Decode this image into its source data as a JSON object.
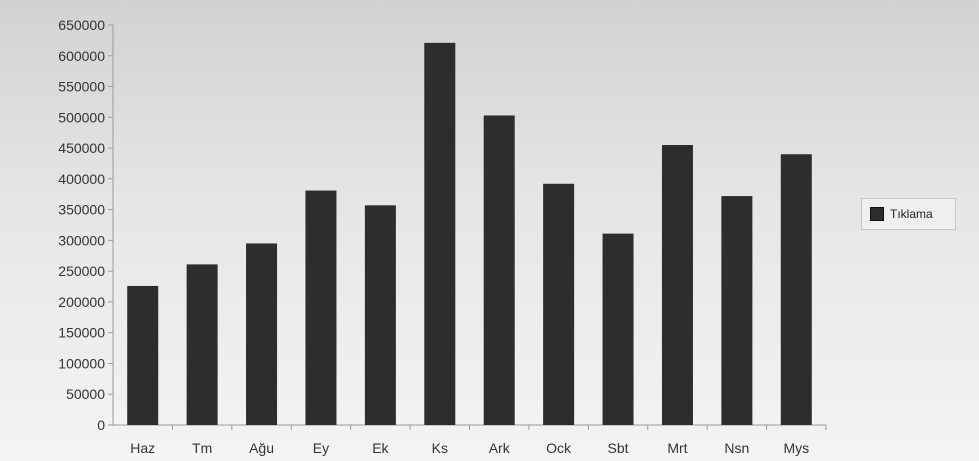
{
  "chart_data": {
    "type": "bar",
    "categories": [
      "Haz",
      "Tm",
      "Ağu",
      "Ey",
      "Ek",
      "Ks",
      "Ark",
      "Ock",
      "Sbt",
      "Mrt",
      "Nsn",
      "Mys"
    ],
    "series": [
      {
        "name": "Tıklama",
        "values": [
          226000,
          261000,
          295000,
          381000,
          357000,
          621000,
          503000,
          392000,
          311000,
          455000,
          372000,
          440000
        ]
      }
    ],
    "yticks": [
      "0",
      "50000",
      "100000",
      "150000",
      "200000",
      "250000",
      "300000",
      "350000",
      "400000",
      "450000",
      "500000",
      "550000",
      "600000",
      "650000"
    ],
    "ylim": [
      0,
      650000
    ],
    "grid": false,
    "legend_position": "right",
    "colors": {
      "bar": "#2d2d2d"
    }
  }
}
